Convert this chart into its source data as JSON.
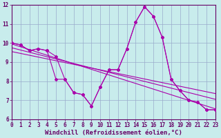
{
  "xlabel": "Windchill (Refroidissement éolien,°C)",
  "xlim": [
    0,
    23
  ],
  "ylim": [
    6,
    12
  ],
  "yticks": [
    6,
    7,
    8,
    9,
    10,
    11,
    12
  ],
  "xticks": [
    0,
    1,
    2,
    3,
    4,
    5,
    6,
    7,
    8,
    9,
    10,
    11,
    12,
    13,
    14,
    15,
    16,
    17,
    18,
    19,
    20,
    21,
    22,
    23
  ],
  "bg_color": "#c8ecec",
  "line_color": "#aa00aa",
  "line1_x": [
    0,
    1,
    2,
    3,
    4,
    5,
    6,
    7,
    8,
    9,
    10,
    11,
    12,
    13,
    14,
    15,
    16,
    17,
    18,
    19,
    20,
    21,
    22,
    23
  ],
  "line1_y": [
    10.0,
    9.9,
    9.6,
    9.7,
    9.6,
    9.3,
    8.1,
    7.4,
    7.3,
    6.7,
    7.7,
    8.6,
    8.6,
    9.7,
    11.1,
    11.9,
    11.4,
    10.3,
    8.1,
    7.5,
    7.0,
    6.9,
    6.5,
    6.5
  ],
  "line2_x": [
    0,
    1,
    2,
    3,
    4,
    5,
    6,
    7,
    8,
    9,
    10,
    11,
    12,
    13,
    14,
    15,
    16,
    17,
    18,
    19,
    20,
    21,
    22,
    23
  ],
  "line2_y": [
    10.0,
    9.9,
    9.6,
    9.7,
    9.6,
    8.1,
    8.1,
    7.4,
    7.3,
    6.7,
    7.7,
    8.6,
    8.6,
    9.7,
    11.1,
    11.9,
    11.4,
    10.3,
    8.1,
    7.5,
    7.0,
    6.9,
    6.5,
    6.5
  ],
  "regression_lines": [
    {
      "start_x": 0,
      "start_y": 9.95,
      "end_x": 23,
      "end_y": 6.55
    },
    {
      "start_x": 0,
      "start_y": 9.75,
      "end_x": 23,
      "end_y": 7.05
    },
    {
      "start_x": 0,
      "start_y": 9.55,
      "end_x": 23,
      "end_y": 7.35
    }
  ],
  "grid_color": "#99aacc",
  "font_family": "monospace",
  "label_fontsize": 6.5,
  "tick_fontsize": 5.5
}
